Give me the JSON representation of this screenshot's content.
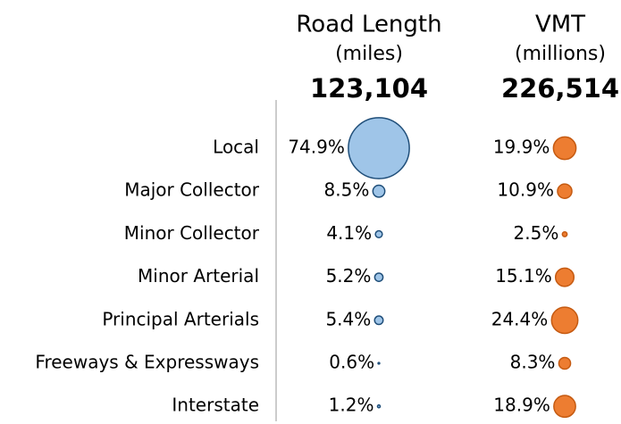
{
  "chart_data": {
    "type": "bubble",
    "categories": [
      "Local",
      "Major Collector",
      "Minor Collector",
      "Minor Arterial",
      "Principal Arterials",
      "Freeways & Expressways",
      "Interstate"
    ],
    "series": [
      {
        "name": "Road Length",
        "unit": "(miles)",
        "total": 123104,
        "total_label": "123,104",
        "color": "#9fc5e8",
        "edge": "#1f4e79",
        "values": [
          74.9,
          8.5,
          4.1,
          5.2,
          5.4,
          0.6,
          1.2
        ],
        "value_labels": [
          "74.9%",
          "8.5%",
          "4.1%",
          "5.2%",
          "5.4%",
          "0.6%",
          "1.2%"
        ]
      },
      {
        "name": "VMT",
        "unit": "(millions)",
        "total": 226514,
        "total_label": "226,514",
        "color": "#ed7d31",
        "edge": "#c55a11",
        "values": [
          19.9,
          10.9,
          2.5,
          15.1,
          24.4,
          8.3,
          18.9
        ],
        "value_labels": [
          "19.9%",
          "10.9%",
          "2.5%",
          "15.1%",
          "24.4%",
          "8.3%",
          "18.9%"
        ]
      }
    ]
  }
}
